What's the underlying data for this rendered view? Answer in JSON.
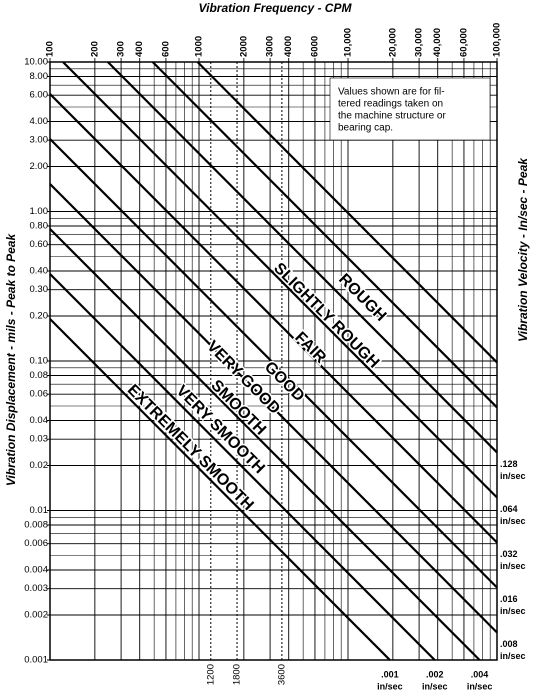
{
  "chart_data": {
    "type": "vibration-severity",
    "title": "Vibration Frequency - CPM",
    "y_title": "Vibration Displacement - mils - Peak to Peak",
    "y2_title": "Vibration Velocity - In/sec - Peak",
    "note": [
      "Values shown are for fil-",
      "tered readings taken on",
      "the machine structure or",
      "bearing cap."
    ],
    "log_x": true,
    "log_y": true,
    "xlim": [
      100,
      100000
    ],
    "ylim": [
      0.001,
      10
    ],
    "xticks": [
      100,
      200,
      300,
      400,
      600,
      {
        "value": 1000,
        "label": "1000"
      },
      2000,
      3000,
      4000,
      6000,
      {
        "value": 10000,
        "label": "10,000"
      },
      {
        "value": 20000,
        "label": "20,000"
      },
      {
        "value": 30000,
        "label": "30,000"
      },
      {
        "value": 40000,
        "label": "40,000"
      },
      {
        "value": 60000,
        "label": "60,000"
      },
      {
        "value": 100000,
        "label": "100,000"
      }
    ],
    "x_minor": [
      500,
      700,
      800,
      900,
      5000,
      7000,
      8000,
      9000,
      50000,
      70000,
      80000,
      90000
    ],
    "reference_lines": [
      1200,
      1800,
      3600
    ],
    "yticks": [
      {
        "value": 10,
        "label": "10.00"
      },
      {
        "value": 8,
        "label": "8.00"
      },
      {
        "value": 6,
        "label": "6.00"
      },
      {
        "value": 4,
        "label": "4.00"
      },
      {
        "value": 3,
        "label": "3.00"
      },
      {
        "value": 2,
        "label": "2.00"
      },
      {
        "value": 1,
        "label": "1.00"
      },
      {
        "value": 0.8,
        "label": "0.80"
      },
      {
        "value": 0.6,
        "label": "0.60"
      },
      {
        "value": 0.4,
        "label": "0.40"
      },
      {
        "value": 0.3,
        "label": "0.30"
      },
      {
        "value": 0.2,
        "label": "0.20"
      },
      {
        "value": 0.1,
        "label": "0.10"
      },
      0.08,
      0.06,
      0.04,
      0.03,
      0.02,
      0.01,
      0.008,
      0.006,
      0.004,
      0.003,
      0.002,
      0.001
    ],
    "y_minor": [
      5,
      7,
      9,
      0.5,
      0.7,
      0.9,
      0.05,
      0.07,
      0.09,
      0.005,
      0.007,
      0.009
    ],
    "velocity_lines": [
      0.512,
      0.256,
      0.128,
      0.064,
      0.032,
      0.016,
      0.008,
      0.004,
      0.002,
      0.001
    ],
    "velocity_labels": [
      null,
      null,
      ".128",
      ".064",
      ".032",
      ".016",
      ".008",
      ".004",
      ".002",
      ".001"
    ],
    "velocity_unit": "in/sec",
    "bands": [
      "ROUGH",
      "SLIGHTLY ROUGH",
      "FAIR",
      "GOOD",
      "VERY GOOD",
      "SMOOTH",
      "VERY SMOOTH",
      "EXTREMELY SMOOTH"
    ],
    "line_color": "#000000",
    "grid": true
  }
}
